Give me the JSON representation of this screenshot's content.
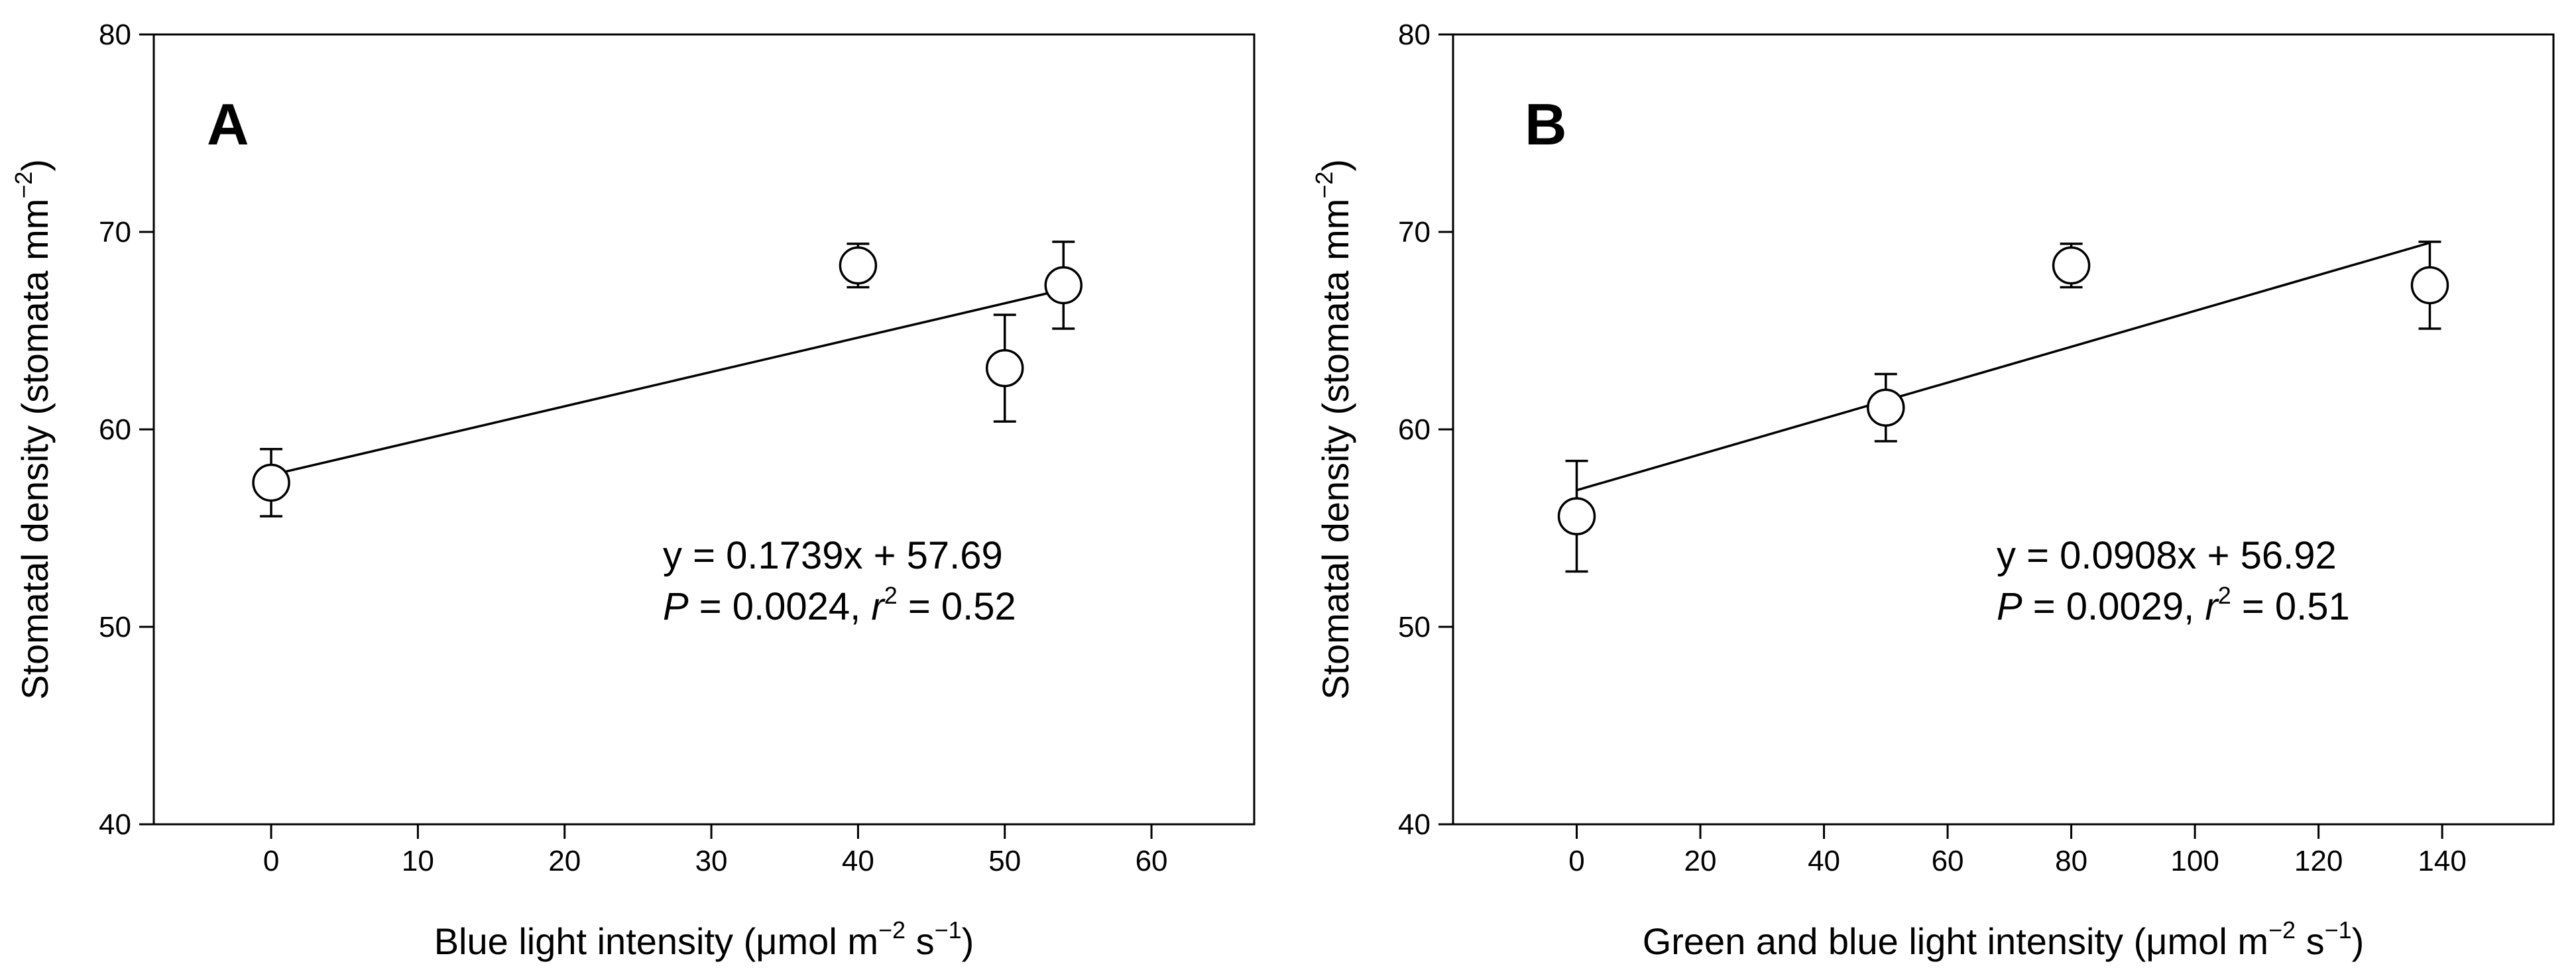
{
  "chart_data": [
    {
      "type": "scatter",
      "panel_label": "A",
      "xlabel_parts": [
        "Blue light intensity (",
        "μ",
        "mol m",
        "−2",
        " s",
        "−1",
        ")"
      ],
      "ylabel_parts": [
        "Stomatal density (stomata mm",
        "−2",
        ")"
      ],
      "xlim": [
        -8,
        67
      ],
      "ylim": [
        40,
        80
      ],
      "xticks": [
        0,
        10,
        20,
        30,
        40,
        50,
        60
      ],
      "yticks": [
        40,
        50,
        60,
        70,
        80
      ],
      "points": [
        {
          "x": 0,
          "y": 57.3,
          "err": 1.7
        },
        {
          "x": 40,
          "y": 68.3,
          "err": 1.1
        },
        {
          "x": 50,
          "y": 63.1,
          "err": 2.7
        },
        {
          "x": 54,
          "y": 67.3,
          "err": 2.2
        }
      ],
      "regression": {
        "slope": 0.1739,
        "intercept": 57.69,
        "x_range": [
          0,
          54
        ]
      },
      "annotation": {
        "equation": "y = 0.1739x + 57.69",
        "p_symbol": "P",
        "p_text": " = 0.0024, ",
        "r_symbol": "r",
        "r_sup": "2",
        "r_text": " = 0.52"
      }
    },
    {
      "type": "scatter",
      "panel_label": "B",
      "xlabel_parts": [
        "Green and blue light intensity (",
        "μ",
        "mol m",
        "−2",
        " s",
        "−1",
        ")"
      ],
      "ylabel_parts": [
        "Stomatal density (stomata mm",
        "−2",
        ")"
      ],
      "xlim": [
        -20,
        158
      ],
      "ylim": [
        40,
        80
      ],
      "xticks": [
        0,
        20,
        40,
        60,
        80,
        100,
        120,
        140
      ],
      "yticks": [
        40,
        50,
        60,
        70,
        80
      ],
      "points": [
        {
          "x": 0,
          "y": 55.6,
          "err": 2.8
        },
        {
          "x": 50,
          "y": 61.1,
          "err": 1.7
        },
        {
          "x": 80,
          "y": 68.3,
          "err": 1.1
        },
        {
          "x": 138,
          "y": 67.3,
          "err": 2.2
        }
      ],
      "regression": {
        "slope": 0.0908,
        "intercept": 56.92,
        "x_range": [
          0,
          138
        ]
      },
      "annotation": {
        "equation": "y = 0.0908x + 56.92",
        "p_symbol": "P",
        "p_text": " = 0.0029, ",
        "r_symbol": "r",
        "r_sup": "2",
        "r_text": " = 0.51"
      }
    }
  ]
}
